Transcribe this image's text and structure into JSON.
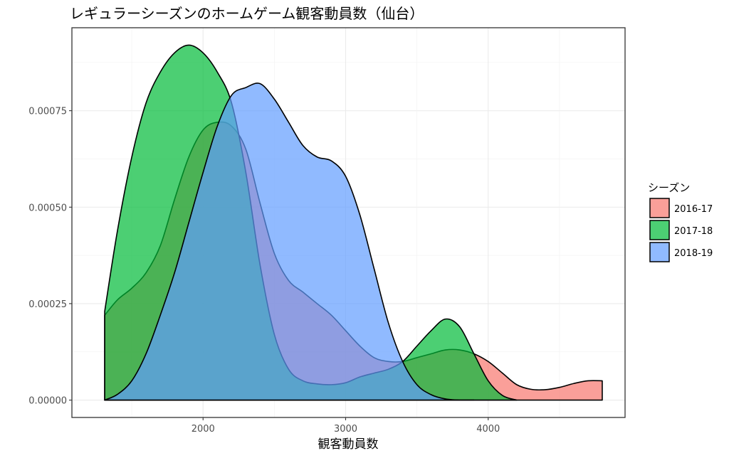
{
  "chart_data": {
    "type": "area",
    "title": "レギュラーシーズンのホームゲーム観客動員数（仙台）",
    "xlabel": "観客動員数",
    "ylabel": "",
    "xlim": [
      1080,
      4960
    ],
    "ylim": [
      -4.5e-05,
      0.000965
    ],
    "x_ticks": [
      2000,
      3000,
      4000
    ],
    "x_tick_labels": [
      "2000",
      "3000",
      "4000"
    ],
    "y_ticks": [
      0,
      0.00025,
      0.0005,
      0.00075
    ],
    "y_tick_labels": [
      "0.00000",
      "0.00025",
      "0.00050",
      "0.00075"
    ],
    "grid": true,
    "legend": {
      "title": "シーズン",
      "position": "right",
      "entries": [
        "2016-17",
        "2017-18",
        "2018-19"
      ]
    },
    "colors": {
      "2016-17": "#F8766D",
      "2017-18": "#00BA38",
      "2018-19": "#619CFF"
    },
    "fill_alpha": 0.7,
    "series": [
      {
        "name": "2016-17",
        "x": [
          1310,
          1400,
          1500,
          1600,
          1700,
          1800,
          1900,
          2000,
          2100,
          2200,
          2300,
          2400,
          2500,
          2600,
          2700,
          2800,
          2900,
          3000,
          3100,
          3200,
          3300,
          3400,
          3500,
          3600,
          3700,
          3800,
          3900,
          4000,
          4100,
          4200,
          4300,
          4400,
          4500,
          4600,
          4700,
          4800
        ],
        "y": [
          0.00022,
          0.00026,
          0.00029,
          0.00033,
          0.0004,
          0.00052,
          0.00063,
          0.0007,
          0.00072,
          0.00071,
          0.00065,
          0.00051,
          0.00038,
          0.00031,
          0.00028,
          0.00025,
          0.00022,
          0.00018,
          0.00014,
          0.00011,
          0.0001,
          0.0001,
          0.00011,
          0.00012,
          0.00013,
          0.00013,
          0.00012,
          0.0001,
          7e-05,
          4e-05,
          2.8e-05,
          2.7e-05,
          3.3e-05,
          4.3e-05,
          5e-05,
          5e-05
        ]
      },
      {
        "name": "2017-18",
        "x": [
          1310,
          1400,
          1500,
          1600,
          1700,
          1800,
          1900,
          2000,
          2100,
          2200,
          2300,
          2400,
          2500,
          2600,
          2700,
          2800,
          2900,
          3000,
          3100,
          3200,
          3300,
          3400,
          3500,
          3600,
          3700,
          3800,
          3900,
          4000,
          4100,
          4200
        ],
        "y": [
          0.00023,
          0.00044,
          0.00063,
          0.00077,
          0.00085,
          0.0009,
          0.00092,
          0.0009,
          0.00085,
          0.00077,
          0.00059,
          0.00035,
          0.00017,
          8e-05,
          5e-05,
          4.2e-05,
          4e-05,
          4.5e-05,
          6e-05,
          7e-05,
          8e-05,
          0.0001,
          0.00014,
          0.00018,
          0.00021,
          0.00019,
          0.00012,
          5e-05,
          1.2e-05,
          0
        ]
      },
      {
        "name": "2018-19",
        "x": [
          1310,
          1400,
          1500,
          1600,
          1700,
          1800,
          1900,
          2000,
          2100,
          2200,
          2300,
          2400,
          2500,
          2600,
          2700,
          2800,
          2900,
          3000,
          3100,
          3200,
          3300,
          3400,
          3500,
          3600,
          3700,
          3800,
          3900
        ],
        "y": [
          0,
          1.5e-05,
          5e-05,
          0.00012,
          0.00022,
          0.00033,
          0.00046,
          0.00059,
          0.00071,
          0.00079,
          0.00081,
          0.00082,
          0.00078,
          0.00072,
          0.00066,
          0.00063,
          0.00062,
          0.00058,
          0.00048,
          0.00034,
          0.0002,
          0.0001,
          4e-05,
          1.4e-05,
          3e-06,
          0,
          0
        ]
      }
    ]
  }
}
